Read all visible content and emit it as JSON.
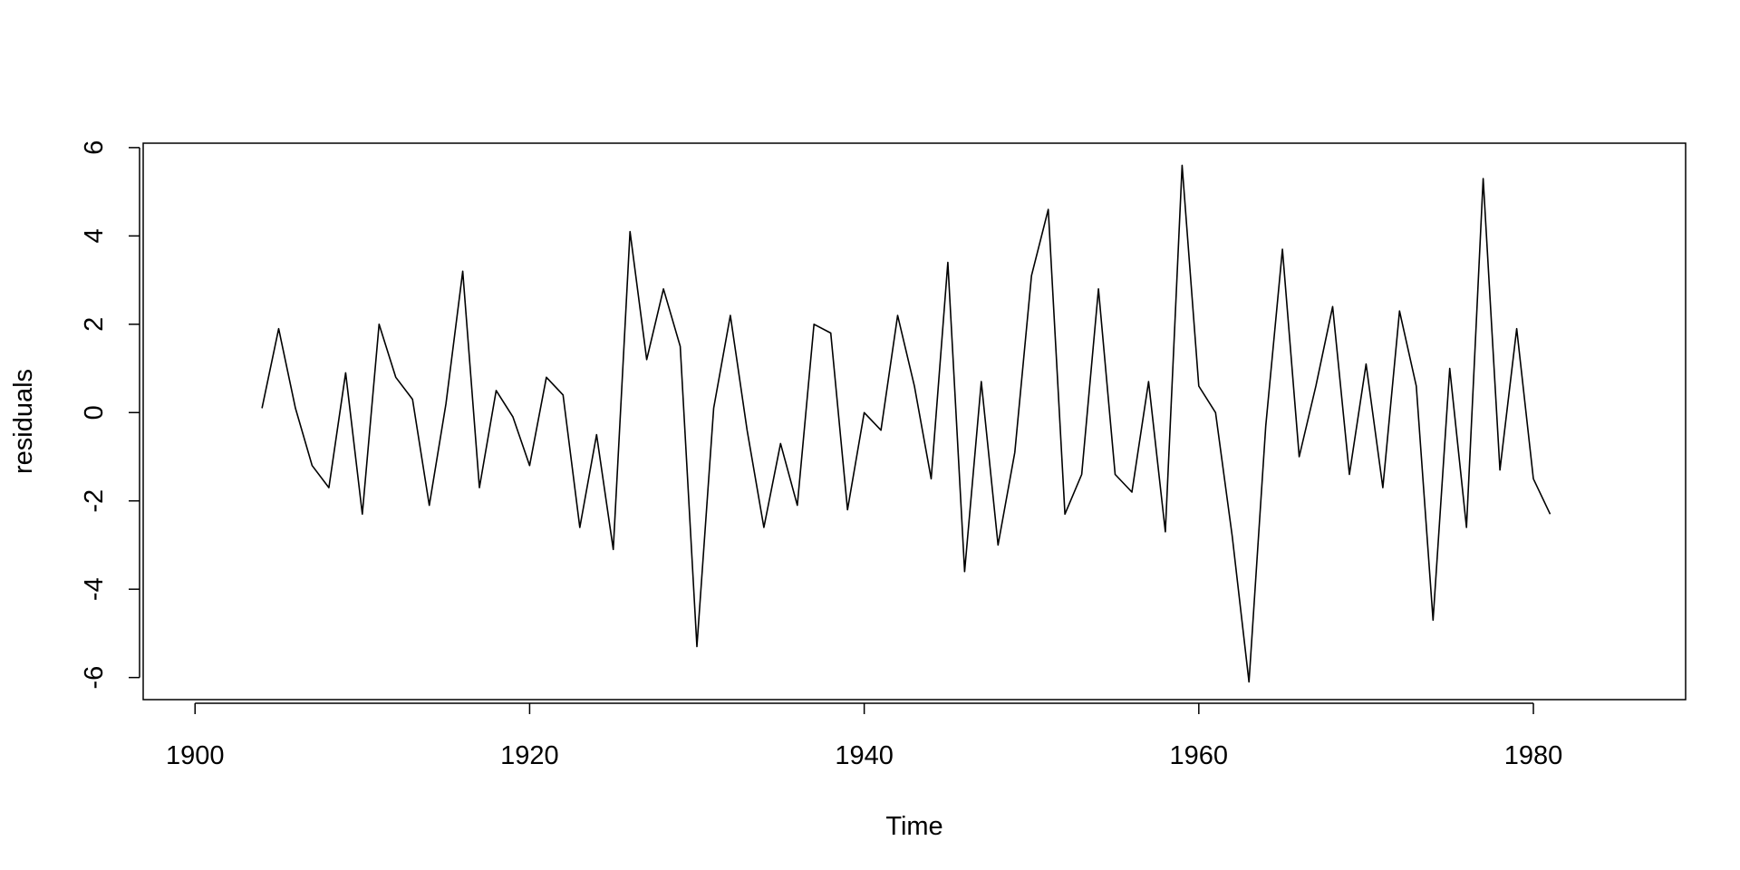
{
  "chart_data": {
    "type": "line",
    "title": "",
    "xlabel": "Time",
    "ylabel": "residuals",
    "xlim": [
      1896.9,
      1989.1
    ],
    "ylim": [
      -6.5,
      6.1
    ],
    "x_ticks": [
      1900,
      1920,
      1940,
      1960,
      1980
    ],
    "x_tick_labels": [
      "1900",
      "1920",
      "1940",
      "1960",
      "1980"
    ],
    "y_ticks": [
      -6,
      -4,
      -2,
      0,
      2,
      4,
      6
    ],
    "y_tick_labels": [
      "-6",
      "-4",
      "-2",
      "0",
      "2",
      "4",
      "6"
    ],
    "grid": false,
    "line_color": "#000000",
    "series": [
      {
        "x": [
          1904,
          1905,
          1906,
          1907,
          1908,
          1909,
          1910,
          1911,
          1912,
          1913,
          1914,
          1915,
          1916,
          1917,
          1918,
          1919,
          1920,
          1921,
          1922,
          1923,
          1924,
          1925,
          1926,
          1927,
          1928,
          1929,
          1930,
          1931,
          1932,
          1933,
          1934,
          1935,
          1936,
          1937,
          1938,
          1939,
          1940,
          1941,
          1942,
          1943,
          1944,
          1945,
          1946,
          1947,
          1948,
          1949,
          1950,
          1951,
          1952,
          1953,
          1954,
          1955,
          1956,
          1957,
          1958,
          1959,
          1960,
          1961,
          1962,
          1963,
          1964,
          1965,
          1966,
          1967,
          1968,
          1969,
          1970,
          1971,
          1972,
          1973,
          1974,
          1975,
          1976,
          1977,
          1978,
          1979,
          1980,
          1981
        ],
        "values": [
          0.1,
          1.9,
          0.1,
          -1.2,
          -1.7,
          0.9,
          -2.3,
          2.0,
          0.8,
          0.3,
          -2.1,
          0.2,
          3.2,
          -1.7,
          0.5,
          -0.1,
          -1.2,
          0.8,
          0.4,
          -2.6,
          -0.5,
          -3.1,
          4.1,
          1.2,
          2.8,
          1.5,
          -5.3,
          0.1,
          2.2,
          -0.4,
          -2.6,
          -0.7,
          -2.1,
          2.0,
          1.8,
          -2.2,
          0.0,
          -0.4,
          2.2,
          0.6,
          -1.5,
          3.4,
          -3.6,
          0.7,
          -3.0,
          -0.9,
          3.1,
          4.6,
          -2.3,
          -1.4,
          2.8,
          -1.4,
          -1.8,
          0.7,
          -2.7,
          5.6,
          0.6,
          0.0,
          -2.8,
          -6.1,
          -0.3,
          3.7,
          -1.0,
          0.6,
          2.4,
          -1.4,
          1.1,
          -1.7,
          2.3,
          0.6,
          -4.7,
          1.0,
          -2.6,
          5.3,
          -1.3,
          1.9,
          -1.5,
          -2.3
        ]
      }
    ]
  }
}
